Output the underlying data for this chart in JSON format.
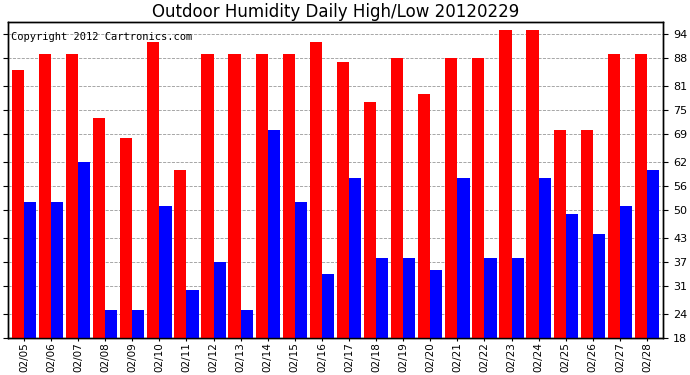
{
  "title": "Outdoor Humidity Daily High/Low 20120229",
  "copyright": "Copyright 2012 Cartronics.com",
  "dates": [
    "02/05",
    "02/06",
    "02/07",
    "02/08",
    "02/09",
    "02/10",
    "02/11",
    "02/12",
    "02/13",
    "02/14",
    "02/15",
    "02/16",
    "02/17",
    "02/18",
    "02/19",
    "02/20",
    "02/21",
    "02/22",
    "02/23",
    "02/24",
    "02/25",
    "02/26",
    "02/27",
    "02/28"
  ],
  "highs": [
    85,
    89,
    89,
    73,
    68,
    92,
    60,
    89,
    89,
    89,
    89,
    92,
    87,
    77,
    88,
    79,
    88,
    88,
    95,
    95,
    70,
    70,
    89,
    89
  ],
  "lows": [
    52,
    52,
    62,
    25,
    25,
    51,
    30,
    37,
    25,
    70,
    52,
    34,
    58,
    38,
    38,
    35,
    58,
    38,
    38,
    58,
    49,
    44,
    51,
    60
  ],
  "y_ticks": [
    18,
    24,
    31,
    37,
    43,
    50,
    56,
    62,
    69,
    75,
    81,
    88,
    94
  ],
  "ylim": [
    18,
    97
  ],
  "bar_color_high": "#ff0000",
  "bar_color_low": "#0000ff",
  "bg_color": "#ffffff",
  "grid_color": "#999999",
  "title_fontsize": 12,
  "copyright_fontsize": 7.5,
  "tick_fontsize": 8
}
